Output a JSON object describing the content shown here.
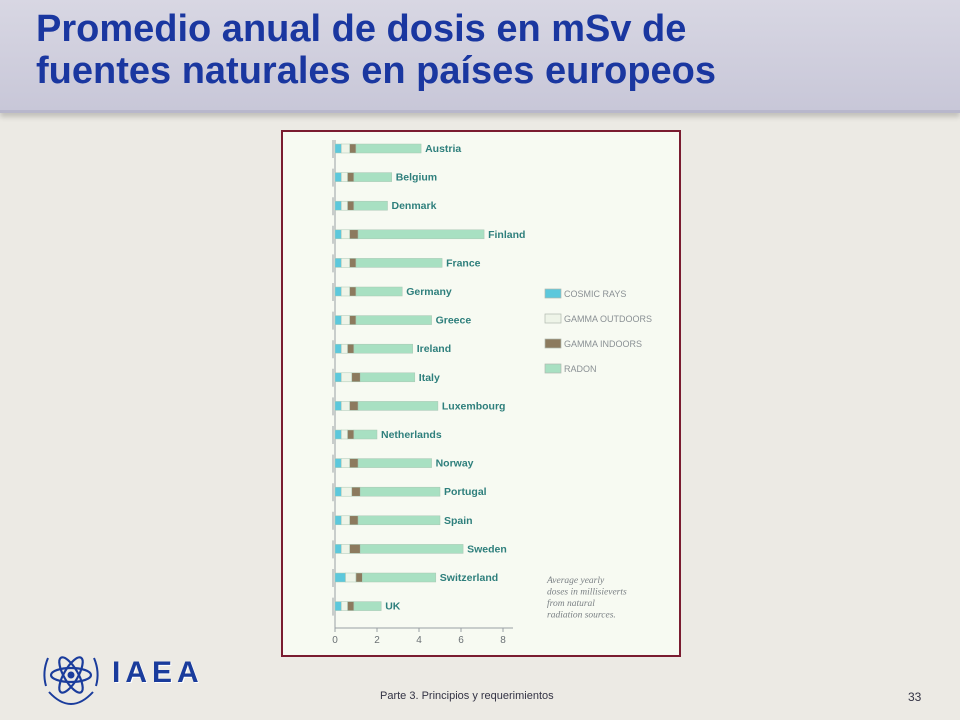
{
  "slide": {
    "title_line1": "Promedio anual de dosis en mSv de",
    "title_line2": "fuentes naturales en países europeos",
    "logo_text": "IAEA",
    "footer": "Parte 3.  Principios y requerimientos",
    "page_number": "33"
  },
  "chart_data": {
    "type": "bar",
    "orientation": "horizontal",
    "stacked": true,
    "categories": [
      "Austria",
      "Belgium",
      "Denmark",
      "Finland",
      "France",
      "Germany",
      "Greece",
      "Ireland",
      "Italy",
      "Luxembourg",
      "Netherlands",
      "Norway",
      "Portugal",
      "Spain",
      "Sweden",
      "Switzerland",
      "UK"
    ],
    "series": [
      {
        "name": "COSMIC RAYS",
        "color": "#5CC8DC",
        "values": [
          0.3,
          0.3,
          0.3,
          0.3,
          0.3,
          0.3,
          0.3,
          0.3,
          0.3,
          0.3,
          0.3,
          0.3,
          0.3,
          0.3,
          0.3,
          0.5,
          0.3
        ]
      },
      {
        "name": "GAMMA OUTDOORS",
        "color": "#EEF4E8",
        "values": [
          0.4,
          0.3,
          0.3,
          0.4,
          0.4,
          0.4,
          0.4,
          0.3,
          0.5,
          0.4,
          0.3,
          0.4,
          0.5,
          0.4,
          0.4,
          0.5,
          0.3
        ]
      },
      {
        "name": "GAMMA INDOORS",
        "color": "#8C7A5E",
        "values": [
          0.3,
          0.3,
          0.3,
          0.4,
          0.3,
          0.3,
          0.3,
          0.3,
          0.4,
          0.4,
          0.3,
          0.4,
          0.4,
          0.4,
          0.5,
          0.3,
          0.3
        ]
      },
      {
        "name": "RADON",
        "color": "#A8E0C2",
        "values": [
          3.1,
          1.8,
          1.6,
          6.0,
          4.1,
          2.2,
          3.6,
          2.8,
          2.6,
          3.8,
          1.1,
          3.5,
          3.8,
          3.9,
          4.9,
          3.5,
          1.3
        ]
      }
    ],
    "xlim": [
      0,
      8
    ],
    "xticks": [
      "0",
      "2",
      "4",
      "6",
      "8"
    ],
    "legend_position": "right",
    "annotation": [
      "Average yearly",
      "doses in millisieverts",
      "from natural",
      "radiation sources."
    ]
  }
}
